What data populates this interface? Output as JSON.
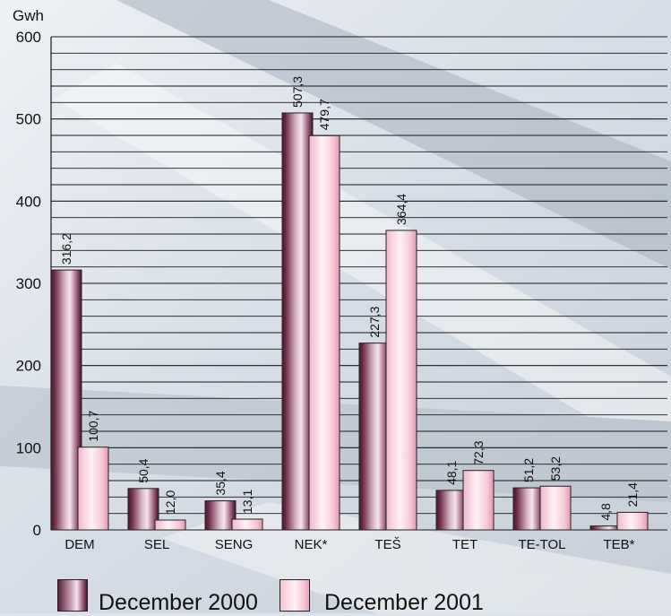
{
  "chart_data": {
    "type": "bar",
    "ylabel": "Gwh",
    "ylim": [
      0,
      600
    ],
    "yticks": [
      0,
      100,
      200,
      300,
      400,
      500,
      600
    ],
    "categories": [
      "DEM",
      "SEL",
      "SENG",
      "NEK*",
      "TEŠ",
      "TET",
      "TE-TOL",
      "TEB*"
    ],
    "series": [
      {
        "name": "December 2000",
        "values": [
          316.2,
          50.4,
          35.4,
          507.3,
          227.3,
          48.1,
          51.2,
          4.8
        ],
        "labels": [
          "316,2",
          "50,4",
          "35,4",
          "507,3",
          "227,3",
          "48,1",
          "51,2",
          "4,8"
        ],
        "color": "#7a2e4e"
      },
      {
        "name": "December 2001",
        "values": [
          100.7,
          12.0,
          13.1,
          479.7,
          364.4,
          72.3,
          53.2,
          21.4
        ],
        "labels": [
          "100,7",
          "12,0",
          "13,1",
          "479,7",
          "364,4",
          "72,3",
          "53,2",
          "21,4"
        ],
        "color": "#f4c0d2"
      }
    ],
    "grid": true,
    "legend": "bottom"
  },
  "legend": {
    "item1": "December 2000",
    "item2": "December 2001"
  }
}
